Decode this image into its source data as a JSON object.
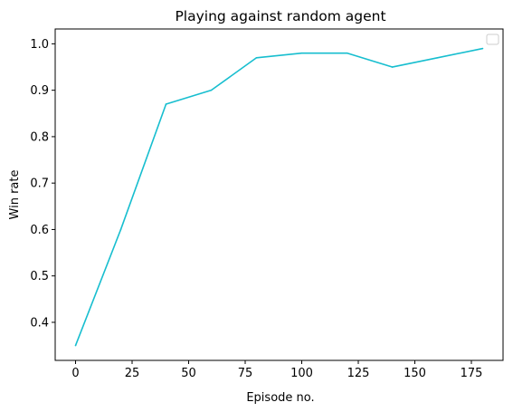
{
  "chart_data": {
    "type": "line",
    "title": "Playing against random agent",
    "xlabel": "Episode no.",
    "ylabel": "Win rate",
    "xlim": [
      -9,
      189
    ],
    "ylim": [
      0.318,
      1.032
    ],
    "xticks": [
      0,
      25,
      50,
      75,
      100,
      125,
      150,
      175
    ],
    "yticks": [
      0.4,
      0.5,
      0.6,
      0.7,
      0.8,
      0.9,
      1.0
    ],
    "xtick_labels": [
      "0",
      "25",
      "50",
      "75",
      "100",
      "125",
      "150",
      "175"
    ],
    "ytick_labels": [
      "0.4",
      "0.5",
      "0.6",
      "0.7",
      "0.8",
      "0.9",
      "1.0"
    ],
    "grid": false,
    "legend": "top-right (empty)",
    "series": [
      {
        "name": "",
        "color": "#17becf",
        "x": [
          0,
          20,
          40,
          60,
          80,
          100,
          120,
          140,
          160,
          180
        ],
        "y": [
          0.35,
          0.6,
          0.87,
          0.9,
          0.97,
          0.98,
          0.98,
          0.95,
          0.97,
          0.99
        ]
      }
    ]
  }
}
